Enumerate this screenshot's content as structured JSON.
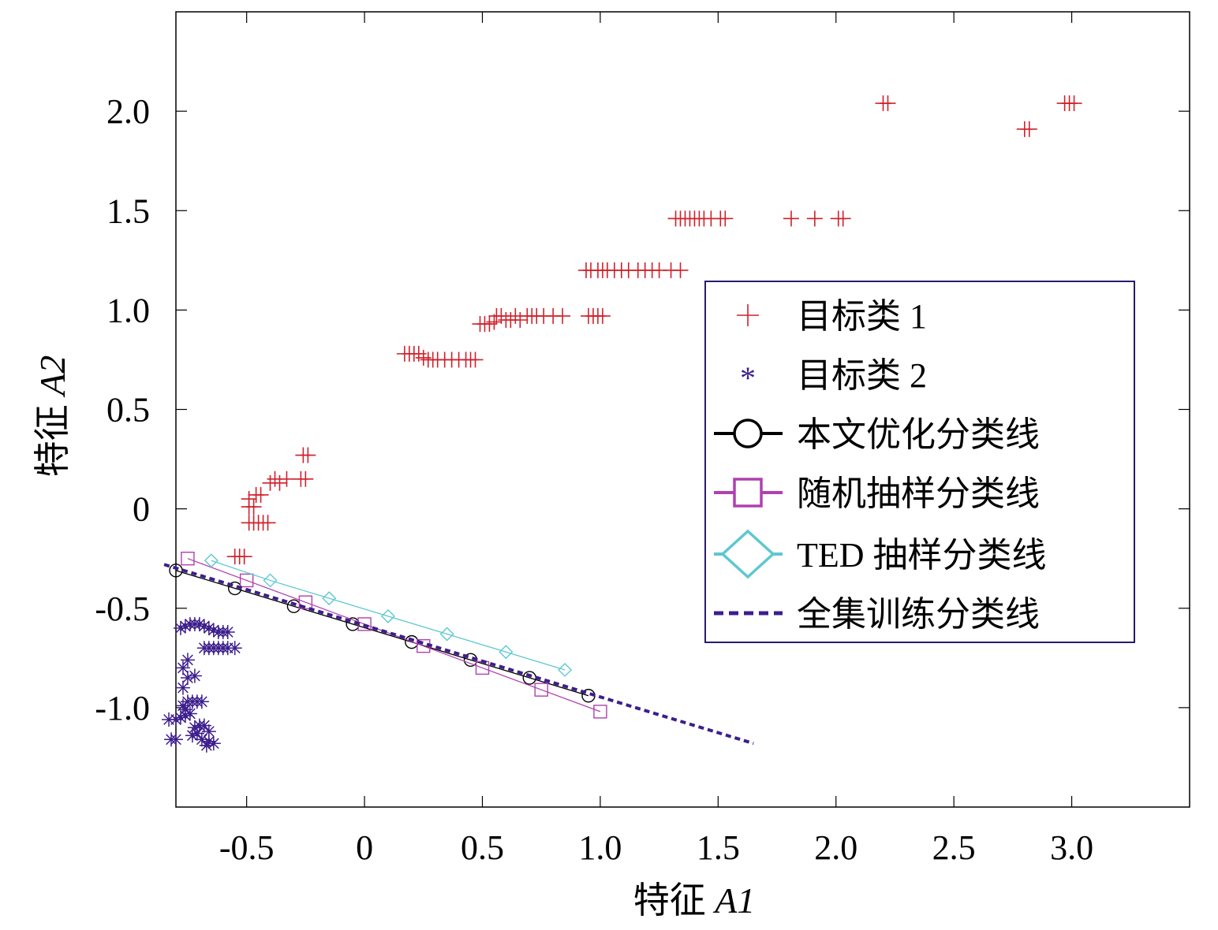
{
  "chart_data": {
    "type": "scatter",
    "xlabel_prefix": "特征",
    "xlabel_var": "A1",
    "ylabel_prefix": "特征",
    "ylabel_var": "A2",
    "xlim": [
      -0.8,
      3.5
    ],
    "ylim": [
      -1.5,
      2.5
    ],
    "grid": false,
    "legend_position": "center-right",
    "x_ticks": [
      {
        "value": -0.5,
        "label": "-0.5"
      },
      {
        "value": 0,
        "label": "0"
      },
      {
        "value": 0.5,
        "label": "0.5"
      },
      {
        "value": 1.0,
        "label": "1.0"
      },
      {
        "value": 1.5,
        "label": "1.5"
      },
      {
        "value": 2.0,
        "label": "2.0"
      },
      {
        "value": 2.5,
        "label": "2.5"
      },
      {
        "value": 3.0,
        "label": "3.0"
      }
    ],
    "y_ticks": [
      {
        "value": -1.0,
        "label": "-1.0"
      },
      {
        "value": -0.5,
        "label": "-0.5"
      },
      {
        "value": 0,
        "label": "0"
      },
      {
        "value": 0.5,
        "label": "0.5"
      },
      {
        "value": 1.0,
        "label": "1.0"
      },
      {
        "value": 1.5,
        "label": "1.5"
      },
      {
        "value": 2.0,
        "label": "2.0"
      }
    ],
    "x_tick_positions": [
      -0.5,
      0,
      0.5,
      1.0,
      1.5,
      2.0,
      2.5,
      3.0
    ],
    "y_tick_positions": [
      -1.0,
      -0.5,
      0,
      0.5,
      1.0,
      1.5,
      2.0
    ],
    "series": [
      {
        "name": "目标类 1",
        "marker": "plus",
        "color": "#d0202a",
        "points": [
          [
            -0.55,
            -0.24
          ],
          [
            -0.53,
            -0.24
          ],
          [
            -0.51,
            -0.24
          ],
          [
            -0.49,
            -0.07
          ],
          [
            -0.47,
            -0.07
          ],
          [
            -0.45,
            -0.07
          ],
          [
            -0.43,
            -0.07
          ],
          [
            -0.41,
            -0.07
          ],
          [
            -0.49,
            0.01
          ],
          [
            -0.47,
            0.01
          ],
          [
            -0.49,
            0.05
          ],
          [
            -0.46,
            0.07
          ],
          [
            -0.44,
            0.07
          ],
          [
            -0.4,
            0.13
          ],
          [
            -0.38,
            0.15
          ],
          [
            -0.36,
            0.13
          ],
          [
            -0.33,
            0.15
          ],
          [
            -0.27,
            0.15
          ],
          [
            -0.25,
            0.15
          ],
          [
            -0.26,
            0.27
          ],
          [
            -0.24,
            0.27
          ],
          [
            0.17,
            0.78
          ],
          [
            0.19,
            0.78
          ],
          [
            0.21,
            0.78
          ],
          [
            0.23,
            0.78
          ],
          [
            0.25,
            0.76
          ],
          [
            0.27,
            0.75
          ],
          [
            0.29,
            0.75
          ],
          [
            0.31,
            0.75
          ],
          [
            0.34,
            0.75
          ],
          [
            0.37,
            0.75
          ],
          [
            0.4,
            0.75
          ],
          [
            0.43,
            0.75
          ],
          [
            0.45,
            0.75
          ],
          [
            0.47,
            0.75
          ],
          [
            0.49,
            0.93
          ],
          [
            0.51,
            0.93
          ],
          [
            0.53,
            0.93
          ],
          [
            0.55,
            0.94
          ],
          [
            0.56,
            0.97
          ],
          [
            0.58,
            0.97
          ],
          [
            0.6,
            0.95
          ],
          [
            0.62,
            0.95
          ],
          [
            0.64,
            0.97
          ],
          [
            0.66,
            0.95
          ],
          [
            0.69,
            0.97
          ],
          [
            0.71,
            0.97
          ],
          [
            0.73,
            0.97
          ],
          [
            0.76,
            0.97
          ],
          [
            0.8,
            0.97
          ],
          [
            0.84,
            0.97
          ],
          [
            0.95,
            0.97
          ],
          [
            0.97,
            0.97
          ],
          [
            0.99,
            0.97
          ],
          [
            1.01,
            0.97
          ],
          [
            0.94,
            1.2
          ],
          [
            0.96,
            1.2
          ],
          [
            0.99,
            1.2
          ],
          [
            1.01,
            1.2
          ],
          [
            1.03,
            1.2
          ],
          [
            1.06,
            1.2
          ],
          [
            1.09,
            1.2
          ],
          [
            1.12,
            1.2
          ],
          [
            1.16,
            1.2
          ],
          [
            1.19,
            1.2
          ],
          [
            1.22,
            1.2
          ],
          [
            1.25,
            1.2
          ],
          [
            1.3,
            1.2
          ],
          [
            1.34,
            1.2
          ],
          [
            1.32,
            1.46
          ],
          [
            1.34,
            1.46
          ],
          [
            1.36,
            1.46
          ],
          [
            1.38,
            1.46
          ],
          [
            1.4,
            1.46
          ],
          [
            1.42,
            1.46
          ],
          [
            1.44,
            1.46
          ],
          [
            1.47,
            1.46
          ],
          [
            1.51,
            1.46
          ],
          [
            1.53,
            1.46
          ],
          [
            1.81,
            1.46
          ],
          [
            1.91,
            1.46
          ],
          [
            2.01,
            1.46
          ],
          [
            2.03,
            1.46
          ],
          [
            2.2,
            2.04
          ],
          [
            2.22,
            2.04
          ],
          [
            2.8,
            1.91
          ],
          [
            2.82,
            1.91
          ],
          [
            2.97,
            2.04
          ],
          [
            2.99,
            2.04
          ],
          [
            3.01,
            2.04
          ]
        ]
      },
      {
        "name": "目标类 2",
        "marker": "asterisk",
        "color": "#3c1e8c",
        "points": [
          [
            -0.82,
            -1.16
          ],
          [
            -0.8,
            -1.16
          ],
          [
            -0.83,
            -1.06
          ],
          [
            -0.8,
            -1.06
          ],
          [
            -0.78,
            -1.05
          ],
          [
            -0.76,
            -1.04
          ],
          [
            -0.74,
            -1.03
          ],
          [
            -0.76,
            -1.01
          ],
          [
            -0.77,
            -0.99
          ],
          [
            -0.75,
            -0.97
          ],
          [
            -0.73,
            -0.97
          ],
          [
            -0.71,
            -0.97
          ],
          [
            -0.69,
            -0.97
          ],
          [
            -0.77,
            -0.9
          ],
          [
            -0.75,
            -0.85
          ],
          [
            -0.77,
            -0.8
          ],
          [
            -0.75,
            -0.76
          ],
          [
            -0.72,
            -0.84
          ],
          [
            -0.78,
            -0.6
          ],
          [
            -0.76,
            -0.59
          ],
          [
            -0.74,
            -0.58
          ],
          [
            -0.72,
            -0.58
          ],
          [
            -0.7,
            -0.58
          ],
          [
            -0.68,
            -0.59
          ],
          [
            -0.66,
            -0.6
          ],
          [
            -0.64,
            -0.61
          ],
          [
            -0.62,
            -0.62
          ],
          [
            -0.6,
            -0.62
          ],
          [
            -0.58,
            -0.62
          ],
          [
            -0.68,
            -0.7
          ],
          [
            -0.66,
            -0.7
          ],
          [
            -0.64,
            -0.7
          ],
          [
            -0.62,
            -0.7
          ],
          [
            -0.6,
            -0.7
          ],
          [
            -0.58,
            -0.7
          ],
          [
            -0.55,
            -0.7
          ],
          [
            -0.72,
            -1.1
          ],
          [
            -0.7,
            -1.09
          ],
          [
            -0.68,
            -1.09
          ],
          [
            -0.66,
            -1.12
          ],
          [
            -0.71,
            -1.13
          ],
          [
            -0.73,
            -1.14
          ],
          [
            -0.69,
            -1.16
          ],
          [
            -0.66,
            -1.17
          ],
          [
            -0.64,
            -1.18
          ],
          [
            -0.67,
            -1.19
          ]
        ]
      },
      {
        "name": "本文优化分类线",
        "marker": "circle",
        "color": "#000000",
        "line": true,
        "points": [
          [
            -0.8,
            -0.31
          ],
          [
            -0.55,
            -0.4
          ],
          [
            -0.3,
            -0.49
          ],
          [
            -0.05,
            -0.58
          ],
          [
            0.2,
            -0.67
          ],
          [
            0.45,
            -0.76
          ],
          [
            0.7,
            -0.85
          ],
          [
            0.95,
            -0.94
          ]
        ]
      },
      {
        "name": "随机抽样分类线",
        "marker": "square",
        "color": "#b040b0",
        "line": true,
        "points": [
          [
            -0.75,
            -0.25
          ],
          [
            -0.5,
            -0.36
          ],
          [
            -0.25,
            -0.47
          ],
          [
            0.0,
            -0.58
          ],
          [
            0.25,
            -0.69
          ],
          [
            0.5,
            -0.8
          ],
          [
            0.75,
            -0.91
          ],
          [
            1.0,
            -1.02
          ]
        ]
      },
      {
        "name": "TED 抽样分类线",
        "marker": "diamond",
        "color": "#5ec8d0",
        "line": true,
        "points": [
          [
            -0.65,
            -0.26
          ],
          [
            -0.4,
            -0.36
          ],
          [
            -0.15,
            -0.45
          ],
          [
            0.1,
            -0.54
          ],
          [
            0.35,
            -0.63
          ],
          [
            0.6,
            -0.72
          ],
          [
            0.85,
            -0.81
          ]
        ]
      },
      {
        "name": "全集训练分类线",
        "marker": "none",
        "color": "#3c1e8c",
        "line": true,
        "dashed": true,
        "points": [
          [
            -0.85,
            -0.28
          ],
          [
            1.65,
            -1.18
          ]
        ]
      }
    ]
  }
}
